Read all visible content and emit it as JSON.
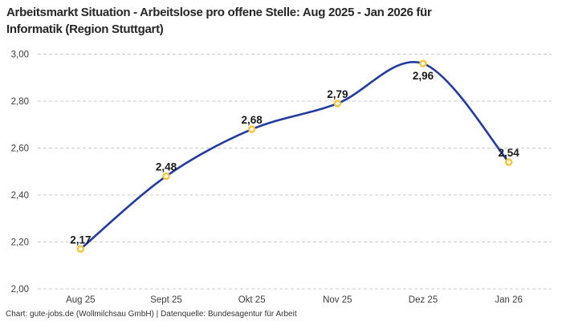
{
  "title": {
    "line1": "Arbeitsmarkt Situation - Arbeitslose pro offene Stelle: Aug 2025 - Jan 2026 für",
    "line2": "Informatik (Region Stuttgart)"
  },
  "footer": "Chart: gute-jobs.de (Wollmilchsau GmbH) | Datenquelle: Bundesagentur für Arbeit",
  "chart_data": {
    "type": "line",
    "title": "Arbeitsmarkt Situation - Arbeitslose pro offene Stelle: Aug 2025 - Jan 2026 für Informatik (Region Stuttgart)",
    "categories": [
      "Aug 25",
      "Sept 25",
      "Okt 25",
      "Nov 25",
      "Dez 25",
      "Jan 26"
    ],
    "values": [
      2.17,
      2.48,
      2.68,
      2.79,
      2.96,
      2.54
    ],
    "data_labels": [
      "2,17",
      "2,48",
      "2,68",
      "2,79",
      "2,96",
      "2,54"
    ],
    "y_ticks": [
      "3,00",
      "2,80",
      "2,60",
      "2,40",
      "2,20",
      "2,00"
    ],
    "y_tick_values": [
      3.0,
      2.8,
      2.6,
      2.4,
      2.2,
      2.0
    ],
    "ylim": [
      2.0,
      3.0
    ],
    "xlabel": "",
    "ylabel": "",
    "grid": "horizontal-dashed",
    "smooth": true,
    "legend": "none",
    "colors": {
      "line": "#213ba3",
      "marker_ring": "#fbc434",
      "marker_fill": "#ffffff",
      "grid": "#cbcbcb",
      "tick_text": "#3d3d3d",
      "data_label": "#1a1a1a"
    }
  }
}
